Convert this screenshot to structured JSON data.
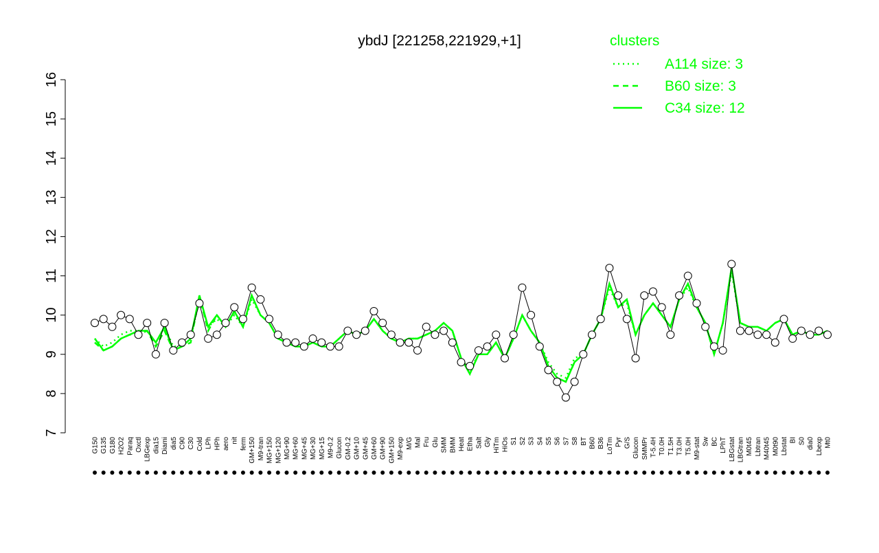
{
  "chart_data": {
    "type": "line",
    "title": "ybdJ [221258,221929,+1]",
    "legend_title": "clusters",
    "legend_position": "top-right",
    "color": "#000000",
    "categories": [
      "G150",
      "G135",
      "G180",
      "H2O2",
      "Paraq",
      "Oxctl",
      "LBGexp",
      "dia15",
      "Diami",
      "dia5",
      "C90",
      "C30",
      "Cold",
      "LPh",
      "HPh",
      "aero",
      "nit",
      "ferm",
      "GM+150",
      "M9-tran",
      "MG+150",
      "MG+120",
      "MG+90",
      "MG+60",
      "MG+45",
      "MG+30",
      "MG+15",
      "M9-0.2",
      "Glucon",
      "GM-0.2",
      "GM+10",
      "GM+45",
      "GM+60",
      "GM+90",
      "GM+150",
      "M9-exp",
      "M/G",
      "Mal",
      "Fru",
      "Glu",
      "SMM",
      "BMM",
      "Heat",
      "Etha",
      "Salt",
      "Gly",
      "HiTm",
      "HiOs",
      "S1",
      "S2",
      "S3",
      "S4",
      "S5",
      "S6",
      "S7",
      "S8",
      "BT",
      "B60",
      "B36",
      "LoTm",
      "Pyr",
      "G/S",
      "Glucon",
      "SMMPr",
      "T-5.4H",
      "T0.0H",
      "T1.5H",
      "T3.0H",
      "T5.0H",
      "M9-stat",
      "Sw",
      "BC",
      "LPhT",
      "LBGstat",
      "LBGtran",
      "M0t45",
      "Lbtran",
      "M40t45",
      "M0t90",
      "Lbstat",
      "BI",
      "S0",
      "dia0",
      "Lbexp",
      "Mt0"
    ],
    "values": [
      9.8,
      9.9,
      9.7,
      10.0,
      9.9,
      9.5,
      9.8,
      9.0,
      9.8,
      9.1,
      9.3,
      9.5,
      10.3,
      9.4,
      9.5,
      9.8,
      10.2,
      9.9,
      10.7,
      10.4,
      9.9,
      9.5,
      9.3,
      9.3,
      9.2,
      9.4,
      9.3,
      9.2,
      9.2,
      9.6,
      9.5,
      9.6,
      10.1,
      9.8,
      9.5,
      9.3,
      9.3,
      9.1,
      9.7,
      9.5,
      9.6,
      9.3,
      8.8,
      8.7,
      9.1,
      9.2,
      9.5,
      8.9,
      9.5,
      10.7,
      10.0,
      9.2,
      8.6,
      8.3,
      7.9,
      8.3,
      9.0,
      9.5,
      9.9,
      11.2,
      10.5,
      9.9,
      8.9,
      10.5,
      10.6,
      10.2,
      9.5,
      10.5,
      11.0,
      10.3,
      9.7,
      9.2,
      9.1,
      11.3,
      9.6,
      9.6,
      9.5,
      9.5,
      9.3,
      9.9,
      9.4,
      9.6,
      9.5,
      9.6,
      9.5
    ],
    "series": [
      {
        "name": "A114 size: 3",
        "color": "#00ff00",
        "style": "dotted",
        "values": [
          9.4,
          9.2,
          9.3,
          9.5,
          9.6,
          9.6,
          9.6,
          9.3,
          9.7,
          9.2,
          9.2,
          9.4,
          10.4,
          9.7,
          9.9,
          9.7,
          10.0,
          9.7,
          10.4,
          10.0,
          9.8,
          9.4,
          9.3,
          9.2,
          9.2,
          9.3,
          9.2,
          9.2,
          9.4,
          9.6,
          9.5,
          9.6,
          9.9,
          9.6,
          9.4,
          9.3,
          9.4,
          9.4,
          9.5,
          9.6,
          9.8,
          9.6,
          8.9,
          8.6,
          9.0,
          9.0,
          9.3,
          8.9,
          9.4,
          10.0,
          9.6,
          9.3,
          8.8,
          8.5,
          8.4,
          8.9,
          9.0,
          9.5,
          9.9,
          10.7,
          10.2,
          10.3,
          9.5,
          10.0,
          10.3,
          10.0,
          9.7,
          10.4,
          10.7,
          10.2,
          9.8,
          9.0,
          9.8,
          11.1,
          9.8,
          9.7,
          9.7,
          9.6,
          9.8,
          9.9,
          9.5,
          9.6,
          9.5,
          9.5,
          9.6
        ]
      },
      {
        "name": "B60 size: 3",
        "color": "#00ff00",
        "style": "dashed",
        "values": [
          9.3,
          9.1,
          9.2,
          9.4,
          9.5,
          9.5,
          9.6,
          9.2,
          9.6,
          9.1,
          9.2,
          9.3,
          10.5,
          9.6,
          10.0,
          9.7,
          10.1,
          9.7,
          10.5,
          10.0,
          9.8,
          9.4,
          9.3,
          9.2,
          9.2,
          9.3,
          9.2,
          9.2,
          9.4,
          9.6,
          9.5,
          9.6,
          9.9,
          9.6,
          9.4,
          9.3,
          9.4,
          9.4,
          9.5,
          9.6,
          9.8,
          9.6,
          8.9,
          8.5,
          9.0,
          9.0,
          9.3,
          8.9,
          9.4,
          10.0,
          9.6,
          9.3,
          8.7,
          8.4,
          8.3,
          8.8,
          9.0,
          9.5,
          9.9,
          10.8,
          10.2,
          10.4,
          9.5,
          10.0,
          10.3,
          10.0,
          9.7,
          10.4,
          10.8,
          10.2,
          9.8,
          9.0,
          9.8,
          11.2,
          9.8,
          9.7,
          9.7,
          9.6,
          9.8,
          9.9,
          9.5,
          9.6,
          9.5,
          9.5,
          9.6
        ]
      },
      {
        "name": "C34 size: 12",
        "color": "#00ff00",
        "style": "solid",
        "values": [
          9.4,
          9.1,
          9.2,
          9.4,
          9.5,
          9.6,
          9.6,
          9.3,
          9.7,
          9.1,
          9.2,
          9.4,
          10.5,
          9.7,
          10.0,
          9.7,
          10.1,
          9.7,
          10.5,
          10.0,
          9.8,
          9.4,
          9.3,
          9.2,
          9.2,
          9.3,
          9.2,
          9.2,
          9.4,
          9.6,
          9.5,
          9.6,
          9.9,
          9.6,
          9.4,
          9.3,
          9.4,
          9.4,
          9.5,
          9.6,
          9.8,
          9.6,
          8.9,
          8.5,
          9.0,
          9.0,
          9.3,
          8.9,
          9.4,
          10.0,
          9.6,
          9.3,
          8.7,
          8.4,
          8.3,
          8.8,
          9.0,
          9.5,
          9.9,
          10.8,
          10.2,
          10.4,
          9.5,
          10.0,
          10.3,
          10.0,
          9.7,
          10.4,
          10.8,
          10.2,
          9.8,
          9.0,
          9.8,
          11.2,
          9.8,
          9.7,
          9.7,
          9.6,
          9.8,
          9.9,
          9.5,
          9.6,
          9.5,
          9.5,
          9.6
        ]
      }
    ],
    "ylim": [
      7,
      16
    ],
    "yticks": [
      7,
      8,
      9,
      10,
      11,
      12,
      13,
      14,
      15,
      16
    ]
  }
}
